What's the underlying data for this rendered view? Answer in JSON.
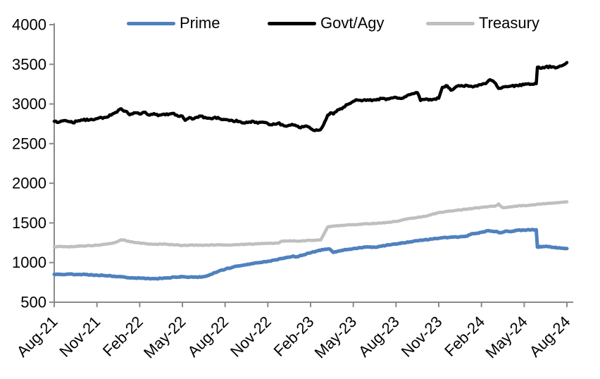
{
  "figure": {
    "background": "#ffffff"
  },
  "legend": {
    "position": "top",
    "items": [
      {
        "label": "Prime",
        "color": "#4f81bd"
      },
      {
        "label": "Govt/Agy",
        "color": "#000000"
      },
      {
        "label": "Treasury",
        "color": "#bfbfbf"
      }
    ]
  },
  "chart_data": {
    "type": "line",
    "title": "",
    "xlabel": "",
    "ylabel": "",
    "grid": false,
    "legend_position": "top",
    "axis_color": "#8a8a8a",
    "ylim": [
      500,
      4000
    ],
    "y_ticks": [
      500,
      1000,
      1500,
      2000,
      2500,
      3000,
      3500,
      4000
    ],
    "x_unit": "months since Aug-2021",
    "x_tick_positions": [
      0,
      3,
      6,
      9,
      12,
      15,
      18,
      21,
      24,
      27,
      30,
      33,
      36
    ],
    "x_tick_labels": [
      "Aug-21",
      "Nov-21",
      "Feb-22",
      "May-22",
      "Aug-22",
      "Nov-22",
      "Feb-23",
      "May-23",
      "Aug-23",
      "Nov-23",
      "Feb-24",
      "May-24",
      "Aug-24"
    ],
    "series": [
      {
        "name": "Prime",
        "color": "#4f81bd",
        "line_width": 5,
        "noise": 10,
        "points": [
          [
            0,
            852
          ],
          [
            0.5,
            848
          ],
          [
            1,
            856
          ],
          [
            1.5,
            849
          ],
          [
            2,
            851
          ],
          [
            2.5,
            844
          ],
          [
            3,
            841
          ],
          [
            3.5,
            838
          ],
          [
            4,
            830
          ],
          [
            4.5,
            822
          ],
          [
            5,
            815
          ],
          [
            5.5,
            808
          ],
          [
            6,
            803
          ],
          [
            6.5,
            799
          ],
          [
            7,
            797
          ],
          [
            7.5,
            801
          ],
          [
            8,
            808
          ],
          [
            8.5,
            816
          ],
          [
            9,
            821
          ],
          [
            9.5,
            817
          ],
          [
            10,
            815
          ],
          [
            10.5,
            823
          ],
          [
            11,
            852
          ],
          [
            11.5,
            888
          ],
          [
            12,
            916
          ],
          [
            12.5,
            940
          ],
          [
            13,
            958
          ],
          [
            13.5,
            972
          ],
          [
            14,
            988
          ],
          [
            14.5,
            1003
          ],
          [
            15,
            1016
          ],
          [
            15.5,
            1033
          ],
          [
            16,
            1052
          ],
          [
            16.5,
            1068
          ],
          [
            16.8,
            1082
          ],
          [
            17,
            1072
          ],
          [
            17.5,
            1098
          ],
          [
            18,
            1123
          ],
          [
            18.5,
            1148
          ],
          [
            19,
            1168
          ],
          [
            19.3,
            1173
          ],
          [
            19.6,
            1128
          ],
          [
            20,
            1148
          ],
          [
            20.5,
            1163
          ],
          [
            21,
            1176
          ],
          [
            21.5,
            1188
          ],
          [
            22,
            1198
          ],
          [
            22.5,
            1193
          ],
          [
            23,
            1208
          ],
          [
            23.5,
            1222
          ],
          [
            24,
            1233
          ],
          [
            24.5,
            1248
          ],
          [
            25,
            1262
          ],
          [
            25.5,
            1275
          ],
          [
            26,
            1286
          ],
          [
            26.5,
            1296
          ],
          [
            27,
            1306
          ],
          [
            27.5,
            1316
          ],
          [
            28,
            1321
          ],
          [
            28.5,
            1326
          ],
          [
            29,
            1333
          ],
          [
            29.3,
            1363
          ],
          [
            29.7,
            1371
          ],
          [
            30,
            1381
          ],
          [
            30.5,
            1403
          ],
          [
            31,
            1392
          ],
          [
            31.3,
            1376
          ],
          [
            31.7,
            1396
          ],
          [
            32,
            1391
          ],
          [
            32.5,
            1406
          ],
          [
            33,
            1409
          ],
          [
            33.5,
            1413
          ],
          [
            33.85,
            1414
          ],
          [
            33.93,
            1196
          ],
          [
            34.3,
            1203
          ],
          [
            34.7,
            1199
          ],
          [
            35,
            1193
          ],
          [
            35.5,
            1186
          ],
          [
            36,
            1177
          ]
        ]
      },
      {
        "name": "Govt/Agy",
        "color": "#000000",
        "line_width": 4.5,
        "noise": 22,
        "points": [
          [
            0,
            2780
          ],
          [
            0.3,
            2768
          ],
          [
            0.7,
            2791
          ],
          [
            1,
            2779
          ],
          [
            1.3,
            2763
          ],
          [
            1.7,
            2789
          ],
          [
            2,
            2796
          ],
          [
            2.5,
            2801
          ],
          [
            3,
            2816
          ],
          [
            3.5,
            2829
          ],
          [
            4,
            2859
          ],
          [
            4.4,
            2896
          ],
          [
            4.7,
            2939
          ],
          [
            5,
            2909
          ],
          [
            5.3,
            2863
          ],
          [
            5.7,
            2889
          ],
          [
            6,
            2873
          ],
          [
            6.3,
            2896
          ],
          [
            6.7,
            2859
          ],
          [
            7,
            2879
          ],
          [
            7.3,
            2851
          ],
          [
            7.7,
            2873
          ],
          [
            8,
            2863
          ],
          [
            8.3,
            2881
          ],
          [
            8.6,
            2859
          ],
          [
            9,
            2846
          ],
          [
            9.2,
            2793
          ],
          [
            9.5,
            2829
          ],
          [
            9.8,
            2813
          ],
          [
            10,
            2833
          ],
          [
            10.3,
            2846
          ],
          [
            10.7,
            2821
          ],
          [
            11,
            2816
          ],
          [
            11.3,
            2833
          ],
          [
            11.7,
            2809
          ],
          [
            12,
            2803
          ],
          [
            12.5,
            2791
          ],
          [
            13,
            2779
          ],
          [
            13.4,
            2759
          ],
          [
            13.7,
            2773
          ],
          [
            14,
            2779
          ],
          [
            14.3,
            2756
          ],
          [
            14.7,
            2769
          ],
          [
            15,
            2753
          ],
          [
            15.3,
            2737
          ],
          [
            15.7,
            2756
          ],
          [
            16,
            2741
          ],
          [
            16.3,
            2719
          ],
          [
            16.7,
            2743
          ],
          [
            17,
            2723
          ],
          [
            17.3,
            2699
          ],
          [
            17.7,
            2723
          ],
          [
            18,
            2691
          ],
          [
            18.3,
            2663
          ],
          [
            18.6,
            2669
          ],
          [
            18.8,
            2703
          ],
          [
            19,
            2776
          ],
          [
            19.2,
            2859
          ],
          [
            19.4,
            2889
          ],
          [
            19.6,
            2873
          ],
          [
            19.8,
            2903
          ],
          [
            20,
            2929
          ],
          [
            20.3,
            2959
          ],
          [
            20.6,
            2993
          ],
          [
            21,
            3033
          ],
          [
            21.3,
            3049
          ],
          [
            21.6,
            3039
          ],
          [
            22,
            3053
          ],
          [
            22.3,
            3041
          ],
          [
            22.7,
            3059
          ],
          [
            23,
            3069
          ],
          [
            23.3,
            3053
          ],
          [
            23.7,
            3076
          ],
          [
            24,
            3083
          ],
          [
            24.3,
            3069
          ],
          [
            24.6,
            3089
          ],
          [
            25,
            3119
          ],
          [
            25.3,
            3133
          ],
          [
            25.5,
            3143
          ],
          [
            25.72,
            3043
          ],
          [
            26,
            3056
          ],
          [
            26.3,
            3049
          ],
          [
            26.7,
            3063
          ],
          [
            27,
            3073
          ],
          [
            27.25,
            3209
          ],
          [
            27.6,
            3229
          ],
          [
            27.85,
            3173
          ],
          [
            28.2,
            3216
          ],
          [
            28.5,
            3226
          ],
          [
            29,
            3233
          ],
          [
            29.5,
            3223
          ],
          [
            30,
            3243
          ],
          [
            30.3,
            3256
          ],
          [
            30.6,
            3306
          ],
          [
            30.9,
            3273
          ],
          [
            31.2,
            3196
          ],
          [
            31.5,
            3213
          ],
          [
            32,
            3223
          ],
          [
            32.5,
            3233
          ],
          [
            33,
            3243
          ],
          [
            33.5,
            3249
          ],
          [
            33.85,
            3256
          ],
          [
            33.93,
            3463
          ],
          [
            34.2,
            3449
          ],
          [
            34.5,
            3466
          ],
          [
            35,
            3469
          ],
          [
            35.3,
            3459
          ],
          [
            35.6,
            3479
          ],
          [
            36,
            3522
          ]
        ]
      },
      {
        "name": "Treasury",
        "color": "#bfbfbf",
        "line_width": 4.5,
        "noise": 10,
        "points": [
          [
            0,
            1198
          ],
          [
            0.5,
            1202
          ],
          [
            1,
            1199
          ],
          [
            1.5,
            1205
          ],
          [
            2,
            1209
          ],
          [
            2.5,
            1213
          ],
          [
            3,
            1219
          ],
          [
            3.5,
            1229
          ],
          [
            4,
            1243
          ],
          [
            4.4,
            1263
          ],
          [
            4.7,
            1289
          ],
          [
            5,
            1279
          ],
          [
            5.3,
            1263
          ],
          [
            5.7,
            1253
          ],
          [
            6,
            1246
          ],
          [
            6.5,
            1236
          ],
          [
            7,
            1229
          ],
          [
            7.5,
            1233
          ],
          [
            8,
            1229
          ],
          [
            8.5,
            1221
          ],
          [
            9,
            1216
          ],
          [
            9.5,
            1221
          ],
          [
            10,
            1223
          ],
          [
            10.5,
            1219
          ],
          [
            11,
            1221
          ],
          [
            11.5,
            1223
          ],
          [
            12,
            1221
          ],
          [
            12.5,
            1224
          ],
          [
            13,
            1226
          ],
          [
            13.5,
            1229
          ],
          [
            14,
            1233
          ],
          [
            14.5,
            1239
          ],
          [
            15,
            1243
          ],
          [
            15.5,
            1246
          ],
          [
            15.8,
            1249
          ],
          [
            16,
            1271
          ],
          [
            16.5,
            1273
          ],
          [
            17,
            1271
          ],
          [
            17.5,
            1276
          ],
          [
            18,
            1279
          ],
          [
            18.4,
            1283
          ],
          [
            18.72,
            1286
          ],
          [
            19.2,
            1449
          ],
          [
            19.5,
            1459
          ],
          [
            20,
            1463
          ],
          [
            20.5,
            1473
          ],
          [
            21,
            1479
          ],
          [
            21.5,
            1483
          ],
          [
            22,
            1489
          ],
          [
            22.5,
            1493
          ],
          [
            23,
            1499
          ],
          [
            23.5,
            1509
          ],
          [
            24,
            1519
          ],
          [
            24.5,
            1539
          ],
          [
            25,
            1556
          ],
          [
            25.5,
            1569
          ],
          [
            26,
            1583
          ],
          [
            26.5,
            1606
          ],
          [
            27,
            1629
          ],
          [
            27.5,
            1643
          ],
          [
            28,
            1653
          ],
          [
            28.5,
            1663
          ],
          [
            29,
            1676
          ],
          [
            29.5,
            1686
          ],
          [
            30,
            1696
          ],
          [
            30.5,
            1706
          ],
          [
            31,
            1716
          ],
          [
            31.2,
            1739
          ],
          [
            31.5,
            1693
          ],
          [
            32,
            1703
          ],
          [
            32.5,
            1711
          ],
          [
            33,
            1719
          ],
          [
            33.5,
            1726
          ],
          [
            34,
            1736
          ],
          [
            34.5,
            1743
          ],
          [
            35,
            1749
          ],
          [
            35.5,
            1756
          ],
          [
            36,
            1766
          ]
        ]
      }
    ]
  }
}
